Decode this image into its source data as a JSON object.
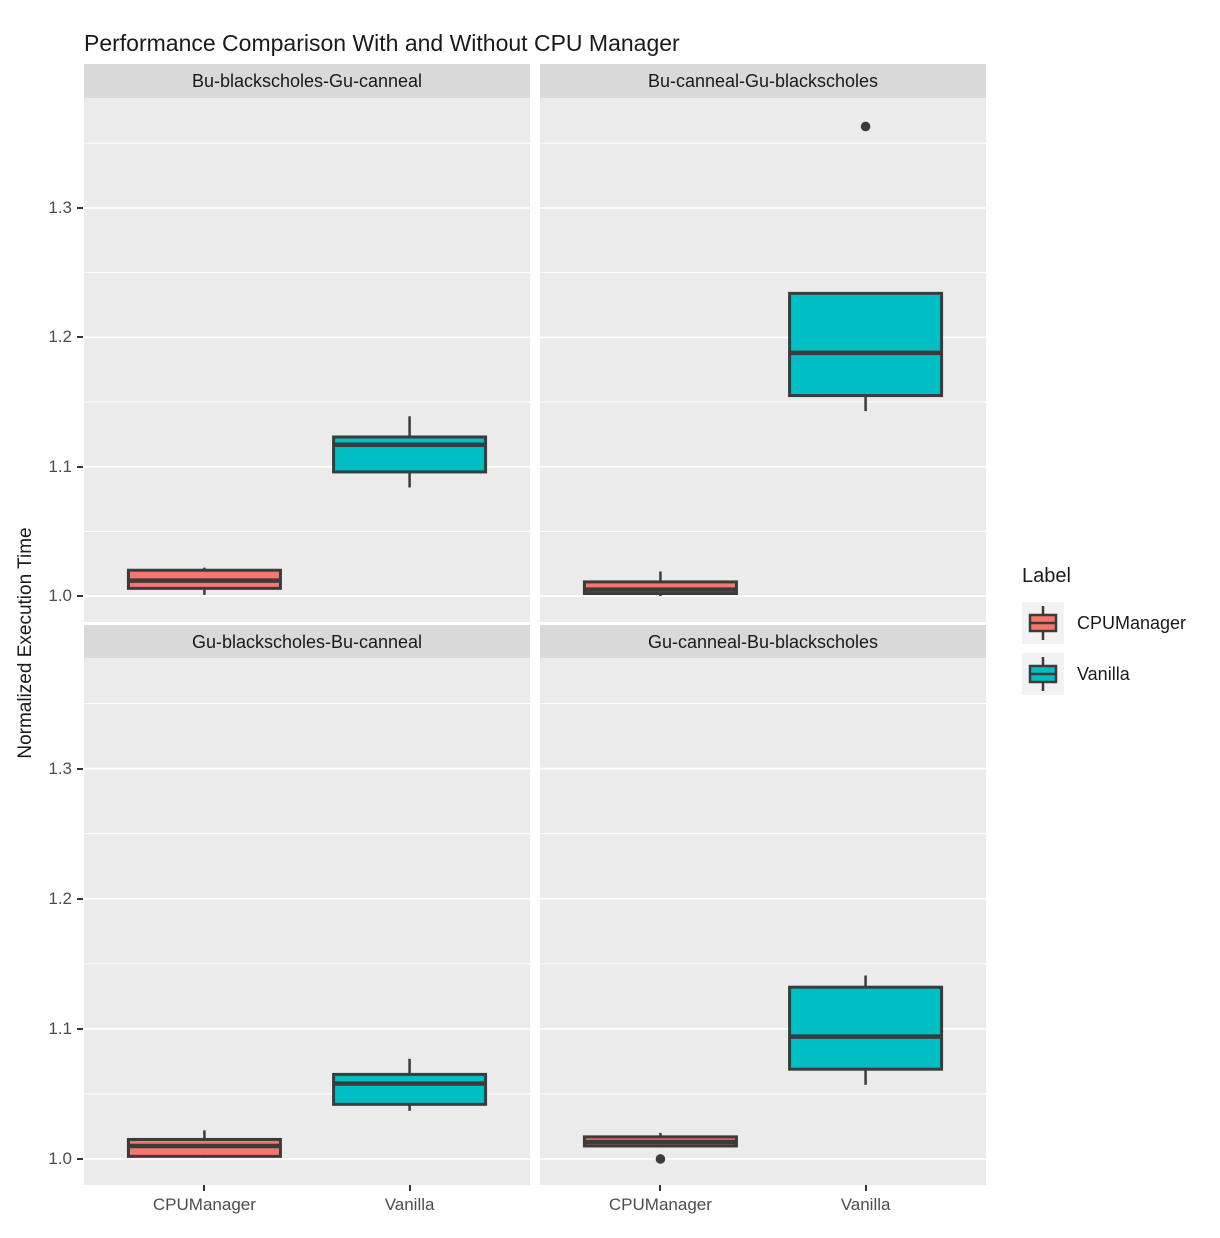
{
  "title": "Performance Comparison With and Without CPU Manager",
  "y_axis": {
    "label": "Normalized Execution Time",
    "ticks": [
      {
        "label": "1.0",
        "value": 1.0
      },
      {
        "label": "1.1",
        "value": 1.1
      },
      {
        "label": "1.2",
        "value": 1.2
      },
      {
        "label": "1.3",
        "value": 1.3
      }
    ],
    "minor_values": [
      1.05,
      1.15,
      1.25,
      1.35
    ],
    "domain": [
      0.98,
      1.385
    ]
  },
  "x_axis": {
    "categories": [
      "CPUManager",
      "Vanilla"
    ]
  },
  "legend": {
    "title": "Label",
    "entries": [
      {
        "label": "CPUManager",
        "color": "#F8766D"
      },
      {
        "label": "Vanilla",
        "color": "#00BFC4"
      }
    ]
  },
  "colors": {
    "cpumanager_fill": "#F8766D",
    "vanilla_fill": "#00BFC4",
    "box_border": "#3B3B3B",
    "median": "#3B3B3B",
    "outlier": "#3B3B3B",
    "panel_bg": "#EBEBEB",
    "strip_bg": "#D9D9D9",
    "grid": "#FFFFFF",
    "axis_text": "#4D4D4D",
    "title_text": "#1A1A1A",
    "legend_key_bg": "#F2F2F2"
  },
  "chart_data": {
    "type": "boxplot",
    "title": "Performance Comparison With and Without CPU Manager",
    "ylabel": "Normalized Execution Time",
    "ylim": [
      0.98,
      1.385
    ],
    "y_major_ticks": [
      1.0,
      1.1,
      1.2,
      1.3
    ],
    "x_categories": [
      "CPUManager",
      "Vanilla"
    ],
    "legend_title": "Label",
    "facets": [
      {
        "name": "Bu-blackscholes-Gu-canneal",
        "boxes": [
          {
            "group": "CPUManager",
            "min": 1.001,
            "q1": 1.006,
            "median": 1.012,
            "q3": 1.02,
            "max": 1.022,
            "outliers": []
          },
          {
            "group": "Vanilla",
            "min": 1.084,
            "q1": 1.096,
            "median": 1.117,
            "q3": 1.123,
            "max": 1.139,
            "outliers": []
          }
        ]
      },
      {
        "name": "Bu-canneal-Gu-blackscholes",
        "boxes": [
          {
            "group": "CPUManager",
            "min": 1.0,
            "q1": 1.002,
            "median": 1.005,
            "q3": 1.011,
            "max": 1.019,
            "outliers": []
          },
          {
            "group": "Vanilla",
            "min": 1.143,
            "q1": 1.155,
            "median": 1.188,
            "q3": 1.234,
            "max": 1.234,
            "outliers": [
              1.363
            ]
          }
        ]
      },
      {
        "name": "Gu-blackscholes-Bu-canneal",
        "boxes": [
          {
            "group": "CPUManager",
            "min": 1.001,
            "q1": 1.002,
            "median": 1.01,
            "q3": 1.015,
            "max": 1.022,
            "outliers": []
          },
          {
            "group": "Vanilla",
            "min": 1.037,
            "q1": 1.042,
            "median": 1.058,
            "q3": 1.065,
            "max": 1.077,
            "outliers": []
          }
        ]
      },
      {
        "name": "Gu-canneal-Bu-blackscholes",
        "boxes": [
          {
            "group": "CPUManager",
            "min": 1.009,
            "q1": 1.01,
            "median": 1.013,
            "q3": 1.017,
            "max": 1.02,
            "outliers": [
              1.0
            ]
          },
          {
            "group": "Vanilla",
            "min": 1.057,
            "q1": 1.069,
            "median": 1.094,
            "q3": 1.132,
            "max": 1.141,
            "outliers": []
          }
        ]
      }
    ]
  }
}
